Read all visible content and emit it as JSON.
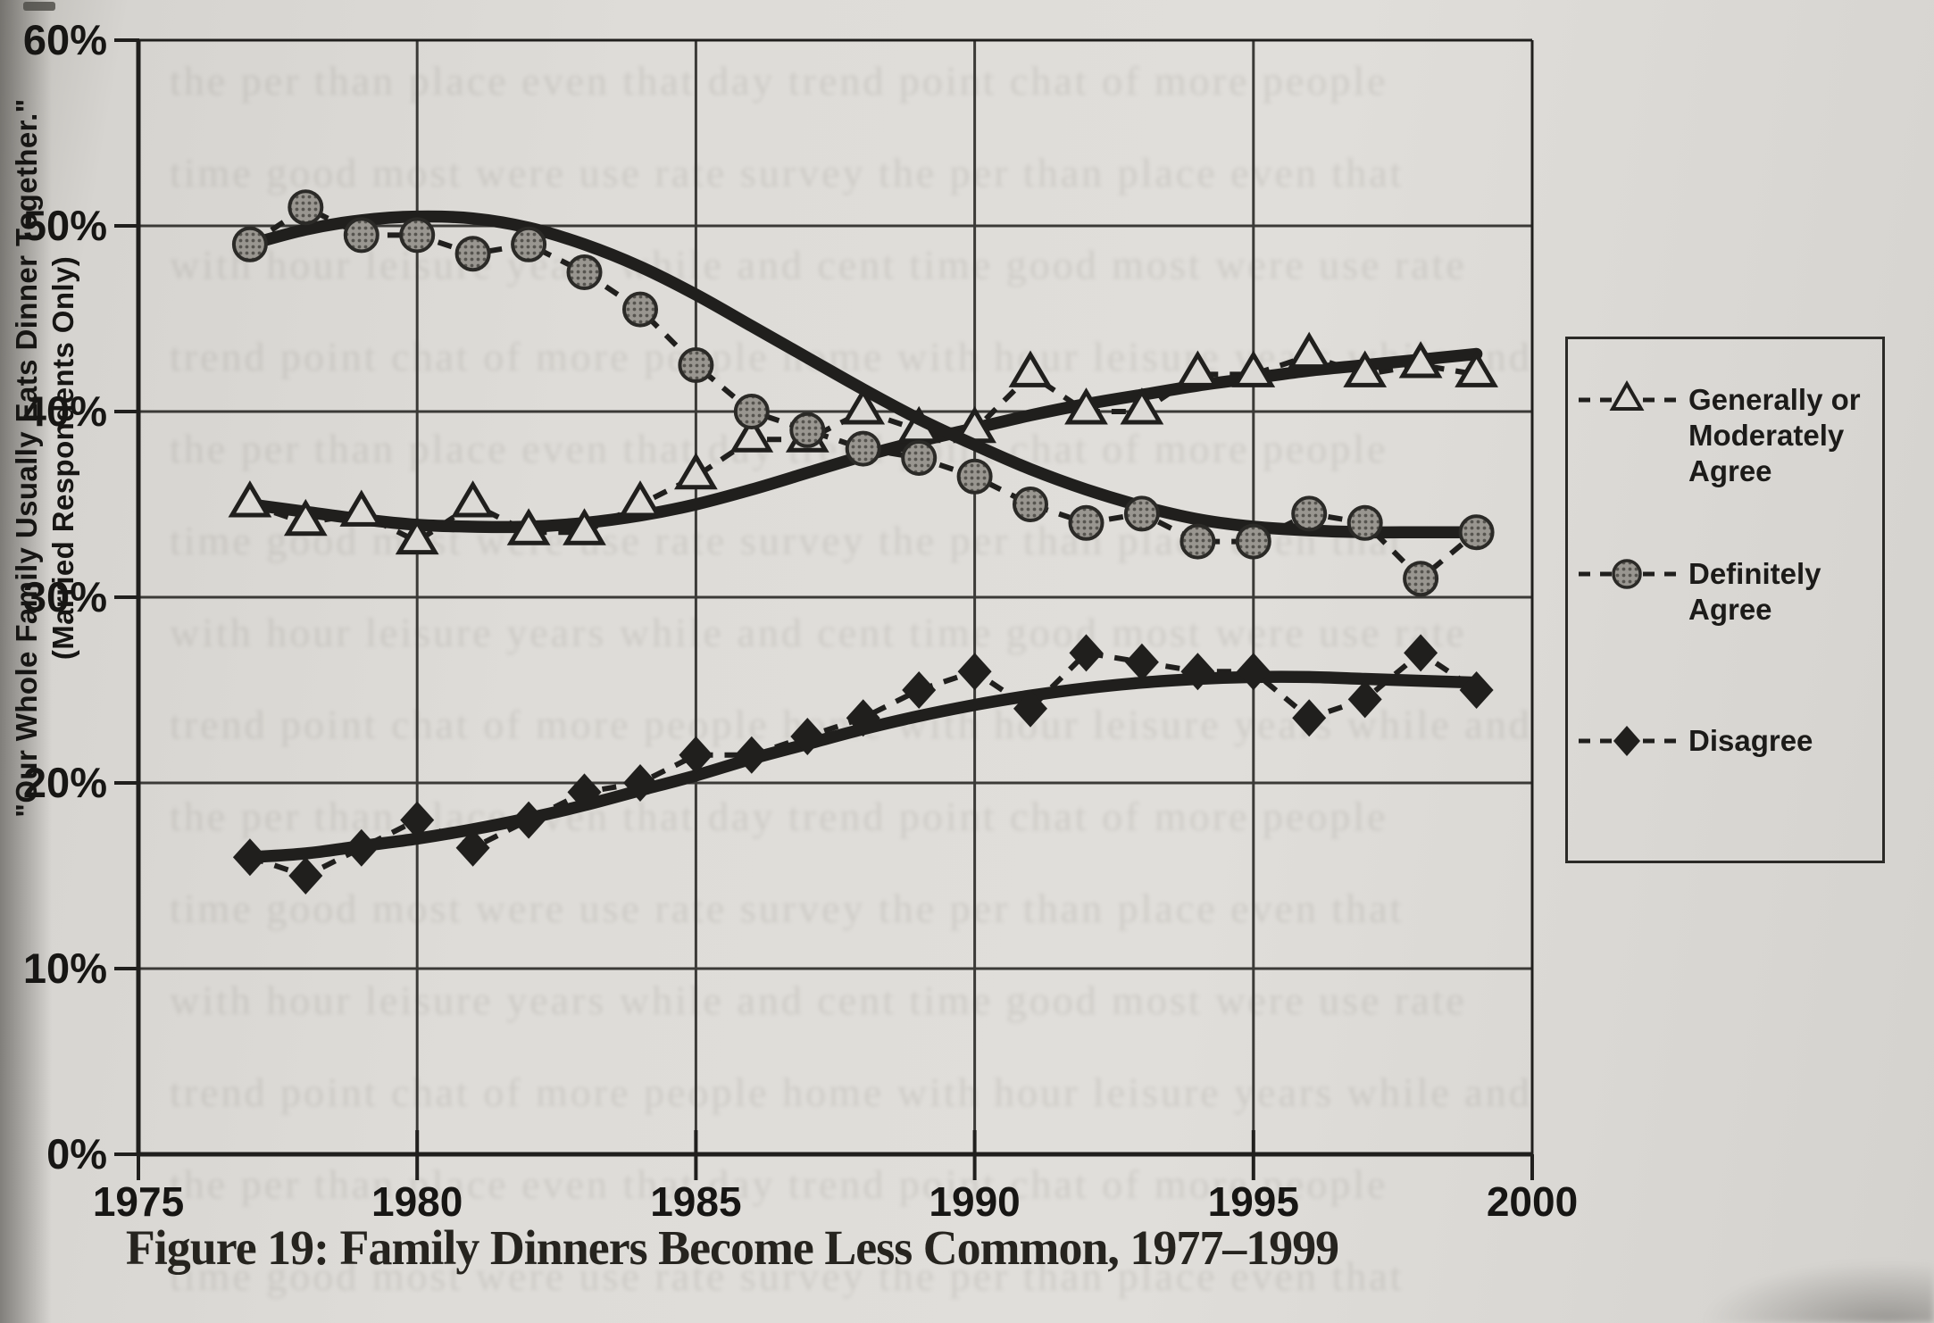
{
  "figure": {
    "caption": "Figure 19: Family Dinners Become Less Common, 1977–1999",
    "y_axis_title_line1": "\"Our Whole Family Usually Eats Dinner Together.\"",
    "y_axis_title_line2": "(Married Respondents Only)"
  },
  "legend": {
    "items": [
      {
        "label": "Generally or Moderately Agree",
        "marker": "triangle-open"
      },
      {
        "label": "Definitely Agree",
        "marker": "circle-gray"
      },
      {
        "label": "Disagree",
        "marker": "diamond-solid"
      }
    ]
  },
  "chart_data": {
    "type": "line",
    "title": "Figure 19: Family Dinners Become Less Common, 1977–1999",
    "xlabel": "",
    "ylabel": "\"Our Whole Family Usually Eats Dinner Together.\" (Married Respondents Only)",
    "xlim": [
      1975,
      2000
    ],
    "ylim": [
      0,
      60
    ],
    "x_ticks": [
      1975,
      1980,
      1985,
      1990,
      1995,
      2000
    ],
    "y_ticks": [
      0,
      10,
      20,
      30,
      40,
      50,
      60
    ],
    "y_tick_suffix": "%",
    "grid": true,
    "legend_position": "right",
    "x_years": [
      1977,
      1978,
      1979,
      1980,
      1981,
      1982,
      1983,
      1984,
      1985,
      1986,
      1987,
      1988,
      1989,
      1990,
      1991,
      1992,
      1993,
      1994,
      1995,
      1996,
      1997,
      1998,
      1999
    ],
    "series": [
      {
        "name": "Generally or Moderately Agree",
        "marker": "triangle-open",
        "line_style": "dashed",
        "values": [
          35,
          34,
          34.5,
          33,
          35,
          33.5,
          33.5,
          35,
          36.5,
          38.5,
          38.5,
          40,
          39,
          39,
          42,
          40,
          40,
          42,
          42,
          43,
          42,
          42.5,
          42
        ],
        "trend": [
          35,
          34.6,
          34.2,
          33.9,
          33.8,
          33.8,
          34,
          34.4,
          35,
          35.8,
          36.7,
          37.6,
          38.4,
          39.1,
          39.8,
          40.4,
          40.9,
          41.4,
          41.8,
          42.2,
          42.5,
          42.8,
          43.1
        ]
      },
      {
        "name": "Definitely Agree",
        "marker": "circle-gray",
        "line_style": "dashed",
        "values": [
          49,
          51,
          49.5,
          49.5,
          48.5,
          49,
          47.5,
          45.5,
          42.5,
          40,
          39,
          38,
          37.5,
          36.5,
          35,
          34,
          34.5,
          33,
          33,
          34.5,
          34,
          31,
          33.5
        ],
        "trend": [
          49,
          49.8,
          50.3,
          50.5,
          50.4,
          49.9,
          49,
          47.8,
          46.3,
          44.6,
          42.9,
          41.2,
          39.6,
          38.2,
          36.9,
          35.8,
          34.9,
          34.2,
          33.8,
          33.6,
          33.5,
          33.5,
          33.5
        ]
      },
      {
        "name": "Disagree",
        "marker": "diamond-solid",
        "line_style": "dashed",
        "values": [
          16,
          15,
          16.5,
          18,
          16.5,
          18,
          19.5,
          20,
          21.5,
          21.5,
          22.5,
          23.5,
          25,
          26,
          24,
          27,
          26.5,
          26,
          26,
          23.5,
          24.5,
          27,
          25
        ],
        "trend": [
          16,
          16.2,
          16.6,
          17,
          17.5,
          18.1,
          18.8,
          19.6,
          20.4,
          21.3,
          22.1,
          22.9,
          23.6,
          24.2,
          24.7,
          25.1,
          25.4,
          25.6,
          25.7,
          25.7,
          25.6,
          25.5,
          25.4
        ]
      }
    ],
    "colors": {
      "ink": "#201f1d",
      "grid": "#3b3a37",
      "paper": "#dcdad6",
      "circle_fill": "#999690"
    }
  }
}
